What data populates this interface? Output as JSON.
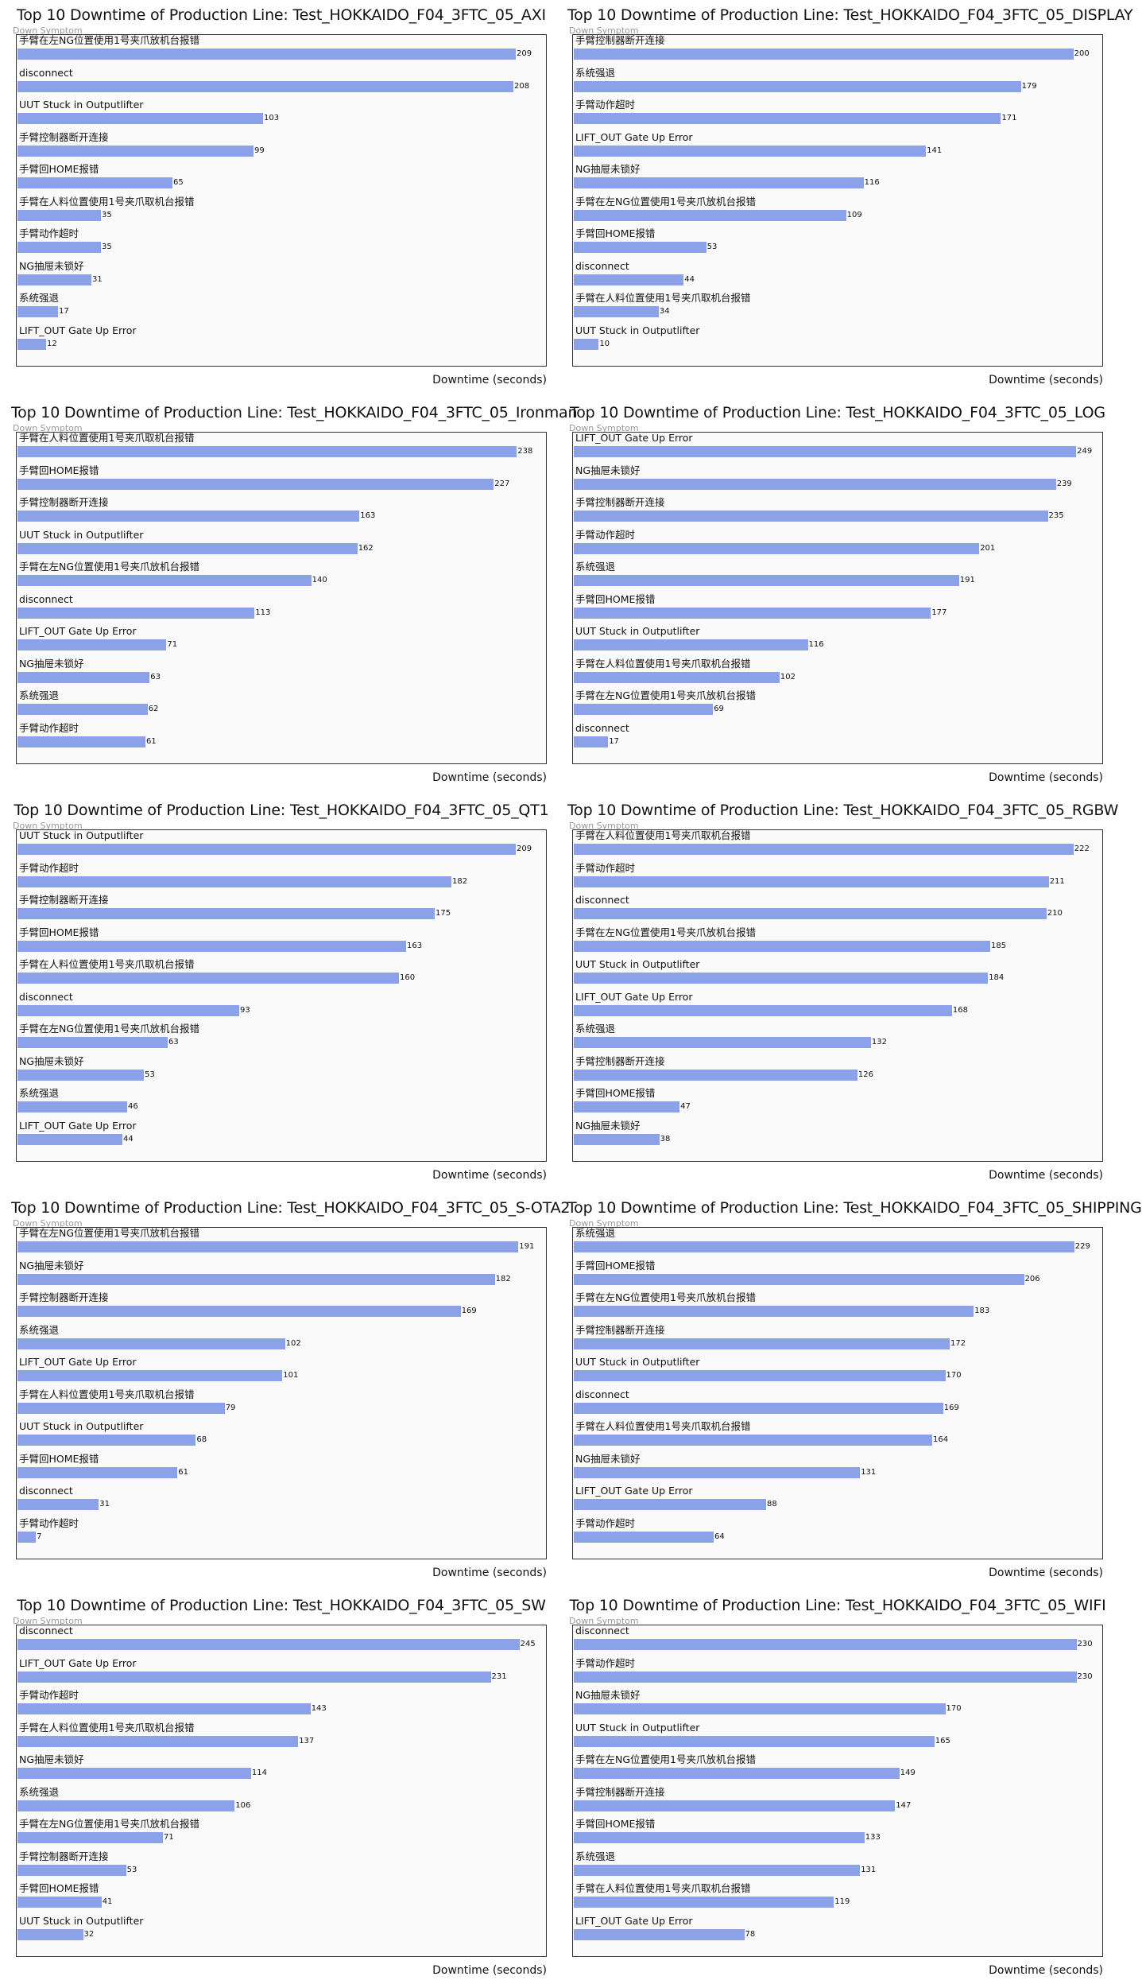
{
  "chart_data": [
    {
      "type": "bar",
      "orientation": "horizontal",
      "title": "Top 10 Downtime of Production Line: Test_HOKKAIDO_F04_3FTC_05_AXI",
      "ylabel": "Down Symptom",
      "xlabel": "Downtime (seconds)",
      "categories": [
        "手臂在左NG位置使用1号夹爪放机台报错",
        "disconnect",
        "UUT Stuck in Outputlifter",
        "手臂控制器断开连接",
        "手臂回HOME报错",
        "手臂在人料位置使用1号夹爪取机台报错",
        "手臂动作超时",
        "NG抽屉未锁好",
        "系统强退",
        "LIFT_OUT Gate Up Error"
      ],
      "values": [
        209,
        208,
        103,
        99,
        65,
        35,
        35,
        31,
        17,
        12
      ],
      "xlim": [
        0,
        220
      ]
    },
    {
      "type": "bar",
      "orientation": "horizontal",
      "title": "Top 10 Downtime of Production Line: Test_HOKKAIDO_F04_3FTC_05_DISPLAY",
      "ylabel": "Down Symptom",
      "xlabel": "Downtime (seconds)",
      "categories": [
        "手臂控制器断开连接",
        "系统强退",
        "手臂动作超时",
        "LIFT_OUT Gate Up Error",
        "NG抽屉未锁好",
        "手臂在左NG位置使用1号夹爪放机台报错",
        "手臂回HOME报错",
        "disconnect",
        "手臂在人料位置使用1号夹爪取机台报错",
        "UUT Stuck in Outputlifter"
      ],
      "values": [
        200,
        179,
        171,
        141,
        116,
        109,
        53,
        44,
        34,
        10
      ],
      "xlim": [
        0,
        210
      ]
    },
    {
      "type": "bar",
      "orientation": "horizontal",
      "title": "Top 10 Downtime of Production Line: Test_HOKKAIDO_F04_3FTC_05_Ironman",
      "ylabel": "Down Symptom",
      "xlabel": "Downtime (seconds)",
      "categories": [
        "手臂在人料位置使用1号夹爪取机台报错",
        "手臂回HOME报错",
        "手臂控制器断开连接",
        "UUT Stuck in Outputlifter",
        "手臂在左NG位置使用1号夹爪放机台报错",
        "disconnect",
        "LIFT_OUT Gate Up Error",
        "NG抽屉未锁好",
        "系统强退",
        "手臂动作超时"
      ],
      "values": [
        238,
        227,
        163,
        162,
        140,
        113,
        71,
        63,
        62,
        61
      ],
      "xlim": [
        0,
        250
      ]
    },
    {
      "type": "bar",
      "orientation": "horizontal",
      "title": "Top 10 Downtime of Production Line: Test_HOKKAIDO_F04_3FTC_05_LOG",
      "ylabel": "Down Symptom",
      "xlabel": "Downtime (seconds)",
      "categories": [
        "LIFT_OUT Gate Up Error",
        "NG抽屉未锁好",
        "手臂控制器断开连接",
        "手臂动作超时",
        "系统强退",
        "手臂回HOME报错",
        "UUT Stuck in Outputlifter",
        "手臂在人料位置使用1号夹爪取机台报错",
        "手臂在左NG位置使用1号夹爪放机台报错",
        "disconnect"
      ],
      "values": [
        249,
        239,
        235,
        201,
        191,
        177,
        116,
        102,
        69,
        17
      ],
      "xlim": [
        0,
        260
      ]
    },
    {
      "type": "bar",
      "orientation": "horizontal",
      "title": "Top 10 Downtime of Production Line: Test_HOKKAIDO_F04_3FTC_05_QT1",
      "ylabel": "Down Symptom",
      "xlabel": "Downtime (seconds)",
      "categories": [
        "UUT Stuck in Outputlifter",
        "手臂动作超时",
        "手臂控制器断开连接",
        "手臂回HOME报错",
        "手臂在人料位置使用1号夹爪取机台报错",
        "disconnect",
        "手臂在左NG位置使用1号夹爪放机台报错",
        "NG抽屉未锁好",
        "系统强退",
        "LIFT_OUT Gate Up Error"
      ],
      "values": [
        209,
        182,
        175,
        163,
        160,
        93,
        63,
        53,
        46,
        44
      ],
      "xlim": [
        0,
        220
      ]
    },
    {
      "type": "bar",
      "orientation": "horizontal",
      "title": "Top 10 Downtime of Production Line: Test_HOKKAIDO_F04_3FTC_05_RGBW",
      "ylabel": "Down Symptom",
      "xlabel": "Downtime (seconds)",
      "categories": [
        "手臂在人料位置使用1号夹爪取机台报错",
        "手臂动作超时",
        "disconnect",
        "手臂在左NG位置使用1号夹爪放机台报错",
        "UUT Stuck in Outputlifter",
        "LIFT_OUT Gate Up Error",
        "系统强退",
        "手臂控制器断开连接",
        "手臂回HOME报错",
        "NG抽屉未锁好"
      ],
      "values": [
        222,
        211,
        210,
        185,
        184,
        168,
        132,
        126,
        47,
        38
      ],
      "xlim": [
        0,
        233
      ]
    },
    {
      "type": "bar",
      "orientation": "horizontal",
      "title": "Top 10 Downtime of Production Line: Test_HOKKAIDO_F04_3FTC_05_S-OTA2",
      "ylabel": "Down Symptom",
      "xlabel": "Downtime (seconds)",
      "categories": [
        "手臂在左NG位置使用1号夹爪放机台报错",
        "NG抽屉未锁好",
        "手臂控制器断开连接",
        "系统强退",
        "LIFT_OUT Gate Up Error",
        "手臂在人料位置使用1号夹爪取机台报错",
        "UUT Stuck in Outputlifter",
        "手臂回HOME报错",
        "disconnect",
        "手臂动作超时"
      ],
      "values": [
        191,
        182,
        169,
        102,
        101,
        79,
        68,
        61,
        31,
        7
      ],
      "xlim": [
        0,
        200
      ]
    },
    {
      "type": "bar",
      "orientation": "horizontal",
      "title": "Top 10 Downtime of Production Line: Test_HOKKAIDO_F04_3FTC_05_SHIPPING",
      "ylabel": "Down Symptom",
      "xlabel": "Downtime (seconds)",
      "categories": [
        "系统强退",
        "手臂回HOME报错",
        "手臂在左NG位置使用1号夹爪放机台报错",
        "手臂控制器断开连接",
        "UUT Stuck in Outputlifter",
        "disconnect",
        "手臂在人料位置使用1号夹爪取机台报错",
        "NG抽屉未锁好",
        "LIFT_OUT Gate Up Error",
        "手臂动作超时"
      ],
      "values": [
        229,
        206,
        183,
        172,
        170,
        169,
        164,
        131,
        88,
        64
      ],
      "xlim": [
        0,
        240
      ]
    },
    {
      "type": "bar",
      "orientation": "horizontal",
      "title": "Top 10 Downtime of Production Line: Test_HOKKAIDO_F04_3FTC_05_SW",
      "ylabel": "Down Symptom",
      "xlabel": "Downtime (seconds)",
      "categories": [
        "disconnect",
        "LIFT_OUT Gate Up Error",
        "手臂动作超时",
        "手臂在人料位置使用1号夹爪取机台报错",
        "NG抽屉未锁好",
        "系统强退",
        "手臂在左NG位置使用1号夹爪放机台报错",
        "手臂控制器断开连接",
        "手臂回HOME报错",
        "UUT Stuck in Outputlifter"
      ],
      "values": [
        245,
        231,
        143,
        137,
        114,
        106,
        71,
        53,
        41,
        32
      ],
      "xlim": [
        0,
        256
      ]
    },
    {
      "type": "bar",
      "orientation": "horizontal",
      "title": "Top 10 Downtime of Production Line: Test_HOKKAIDO_F04_3FTC_05_WIFI",
      "ylabel": "Down Symptom",
      "xlabel": "Downtime (seconds)",
      "categories": [
        "disconnect",
        "手臂动作超时",
        "NG抽屉未锁好",
        "UUT Stuck in Outputlifter",
        "手臂在左NG位置使用1号夹爪放机台报错",
        "手臂控制器断开连接",
        "手臂回HOME报错",
        "系统强退",
        "手臂在人料位置使用1号夹爪取机台报错",
        "LIFT_OUT Gate Up Error"
      ],
      "values": [
        230,
        230,
        170,
        165,
        149,
        147,
        133,
        131,
        119,
        78
      ],
      "xlim": [
        0,
        240
      ]
    }
  ],
  "colors": {
    "bar": "#8ba2e8",
    "plot_bg": "#fafafa",
    "axis_label": "#9a9a9a"
  }
}
